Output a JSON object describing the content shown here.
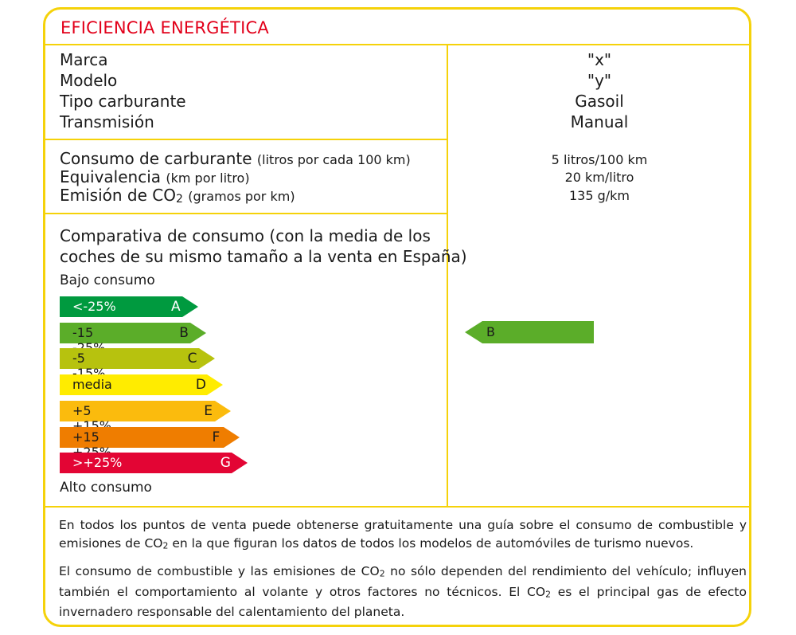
{
  "title": "EFICIENCIA ENERGÉTICA",
  "vehicle": {
    "labels": [
      "Marca",
      "Modelo",
      "Tipo carburante",
      "Transmisión"
    ],
    "values": [
      "\"x\"",
      "\"y\"",
      "Gasoil",
      "Manual"
    ]
  },
  "consumption": {
    "fuel_label": "Consumo de carburante",
    "fuel_unit": "(litros por cada 100 km)",
    "equiv_label": "Equivalencia",
    "equiv_unit": "(km por litro)",
    "co2_label_a": "Emisión de CO",
    "co2_sub": "2",
    "co2_unit": "(gramos por km)",
    "fuel_value": "5 litros/100 km",
    "equiv_value": "20 km/litro",
    "co2_value": "135 g/km"
  },
  "comparison": {
    "heading": "Comparativa de consumo",
    "heading_rest_1": "(con la media de los",
    "heading_rest_2": "coches de su mismo tamaño a la venta en España)",
    "low_label": "Bajo consumo",
    "high_label": "Alto consumo",
    "classes": [
      {
        "range": "<-25%",
        "letter": "A",
        "color": "#009a3f",
        "text_color": "#ffffff"
      },
      {
        "range": "-15 -25%",
        "letter": "B",
        "color": "#5bad29",
        "text_color": "#1a1a1a"
      },
      {
        "range": "-5  -15%",
        "letter": "C",
        "color": "#b7c20e",
        "text_color": "#1a1a1a"
      },
      {
        "range": "media",
        "letter": "D",
        "color": "#ffec00",
        "text_color": "#1a1a1a"
      },
      {
        "range": "+5  +15%",
        "letter": "E",
        "color": "#fbbb0d",
        "text_color": "#1a1a1a"
      },
      {
        "range": "+15 +25%",
        "letter": "F",
        "color": "#ef7d00",
        "text_color": "#1a1a1a"
      },
      {
        "range": ">+25%",
        "letter": "G",
        "color": "#e30534",
        "text_color": "#ffffff"
      }
    ],
    "current_class": "B",
    "current_color": "#5bad29"
  },
  "notes": {
    "p1_a": "En todos los puntos de venta puede obtenerse gratuitamente una guía sobre el consumo de combustible y emisiones de CO",
    "p1_sub": "2",
    "p1_b": " en la que figuran los datos de todos los modelos de automóviles de turismo nuevos.",
    "p2_a": "El consumo de combustible y las emisiones de CO",
    "p2_sub1": "2",
    "p2_b": " no sólo dependen del rendimiento del vehículo; influyen también el comportamiento al volante y otros factores no técnicos. El CO",
    "p2_sub2": "2",
    "p2_c": " es el principal gas de efecto invernadero responsable del calentamiento del planeta."
  }
}
